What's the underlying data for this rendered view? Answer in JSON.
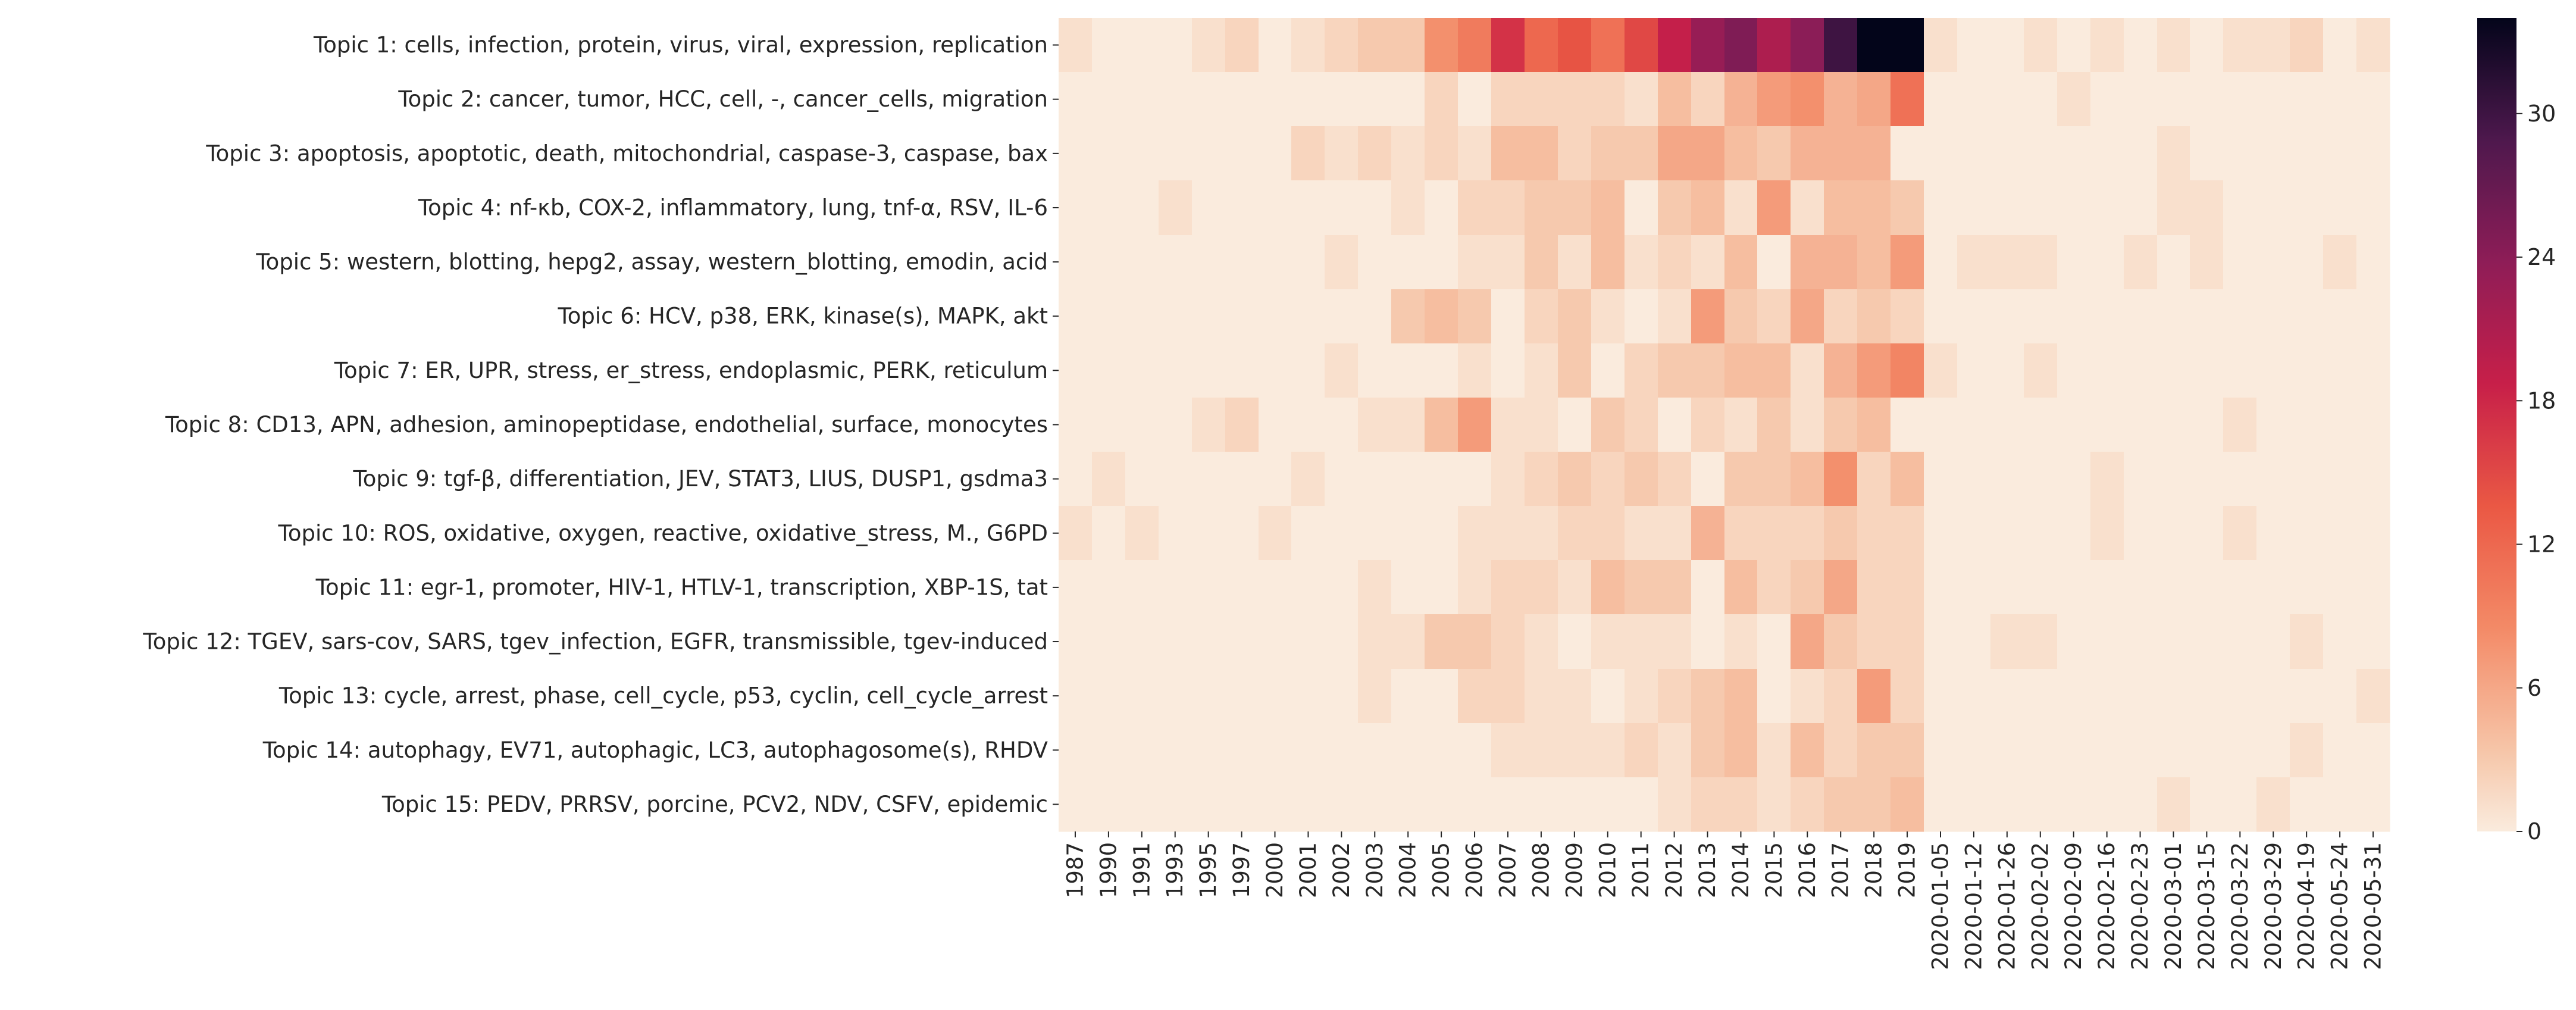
{
  "chart_data": {
    "type": "heatmap",
    "title": "",
    "xlabel": "",
    "ylabel": "",
    "colormap": "rocket_r",
    "color_range": [
      0,
      34
    ],
    "colorbar_ticks": [
      0,
      6,
      12,
      18,
      24,
      30
    ],
    "colorbar_tick_labels": [
      "0",
      "6",
      "12",
      "18",
      "24",
      "30"
    ],
    "x_labels": [
      "1987",
      "1990",
      "1991",
      "1993",
      "1995",
      "1997",
      "2000",
      "2001",
      "2002",
      "2003",
      "2004",
      "2005",
      "2006",
      "2007",
      "2008",
      "2009",
      "2010",
      "2011",
      "2012",
      "2013",
      "2014",
      "2015",
      "2016",
      "2017",
      "2018",
      "2019",
      "2020-01-05",
      "2020-01-12",
      "2020-01-26",
      "2020-02-02",
      "2020-02-09",
      "2020-02-16",
      "2020-02-23",
      "2020-03-01",
      "2020-03-15",
      "2020-03-22",
      "2020-03-29",
      "2020-04-19",
      "2020-05-24",
      "2020-05-31"
    ],
    "y_labels": [
      "Topic 1: cells, infection, protein, virus, viral, expression, replication",
      "Topic 2: cancer, tumor, HCC, cell, -, cancer_cells, migration",
      "Topic 3: apoptosis, apoptotic, death, mitochondrial, caspase-3, caspase, bax",
      "Topic 4: nf-κb, COX-2, inflammatory, lung, tnf-α, RSV, IL-6",
      "Topic 5: western, blotting, hepg2, assay, western_blotting, emodin, acid",
      "Topic 6: HCV, p38, ERK, kinase(s), MAPK, akt",
      "Topic 7: ER, UPR, stress, er_stress, endoplasmic, PERK, reticulum",
      "Topic 8: CD13, APN, adhesion, aminopeptidase, endothelial, surface, monocytes",
      "Topic 9: tgf-β, differentiation, JEV, STAT3, LIUS, DUSP1, gsdma3",
      "Topic 10: ROS, oxidative, oxygen, reactive, oxidative_stress, M., G6PD",
      "Topic 11: egr-1, promoter, HIV-1, HTLV-1, transcription, XBP-1S, tat",
      "Topic 12: TGEV, sars-cov, SARS, tgev_infection, EGFR, transmissible, tgev-induced",
      "Topic 13: cycle, arrest, phase, cell_cycle, p53, cyclin, cell_cycle_arrest",
      "Topic 14: autophagy, EV71, autophagic, LC3, autophagosome(s), RHDV",
      "Topic 15: PEDV, PRRSV, porcine, PCV2, NDV, CSFV, epidemic"
    ],
    "values": [
      [
        1,
        0,
        0,
        0,
        1,
        2,
        0,
        1,
        2,
        3,
        3,
        8,
        10,
        17,
        12,
        14,
        11,
        15,
        19,
        23,
        25,
        21,
        24,
        30,
        34,
        34,
        1,
        0,
        0,
        1,
        0,
        1,
        0,
        1,
        0,
        1,
        1,
        2,
        0,
        1
      ],
      [
        0,
        0,
        0,
        0,
        0,
        0,
        0,
        0,
        0,
        0,
        0,
        2,
        0,
        2,
        2,
        2,
        2,
        1,
        4,
        2,
        5,
        7,
        8,
        5,
        6,
        11,
        0,
        0,
        0,
        0,
        1,
        0,
        0,
        0,
        0,
        0,
        0,
        0,
        0,
        0
      ],
      [
        0,
        0,
        0,
        0,
        0,
        0,
        0,
        2,
        1,
        2,
        1,
        2,
        1,
        4,
        4,
        2,
        3,
        3,
        6,
        6,
        4,
        3,
        5,
        5,
        5,
        0,
        0,
        0,
        0,
        0,
        0,
        0,
        0,
        1,
        0,
        0,
        0,
        0,
        0,
        0
      ],
      [
        0,
        0,
        0,
        1,
        0,
        0,
        0,
        0,
        0,
        0,
        1,
        0,
        2,
        2,
        3,
        3,
        4,
        0,
        3,
        4,
        1,
        7,
        1,
        4,
        4,
        3,
        0,
        0,
        0,
        0,
        0,
        0,
        0,
        1,
        1,
        0,
        0,
        0,
        0,
        0
      ],
      [
        0,
        0,
        0,
        0,
        0,
        0,
        0,
        0,
        1,
        0,
        0,
        0,
        1,
        1,
        3,
        1,
        4,
        1,
        2,
        1,
        4,
        0,
        5,
        5,
        4,
        7,
        0,
        1,
        1,
        1,
        0,
        0,
        1,
        0,
        1,
        0,
        0,
        0,
        1,
        0
      ],
      [
        0,
        0,
        0,
        0,
        0,
        0,
        0,
        0,
        0,
        0,
        3,
        4,
        3,
        0,
        2,
        3,
        1,
        0,
        1,
        7,
        3,
        2,
        6,
        2,
        3,
        2,
        0,
        0,
        0,
        0,
        0,
        0,
        0,
        0,
        0,
        0,
        0,
        0,
        0,
        0
      ],
      [
        0,
        0,
        0,
        0,
        0,
        0,
        0,
        0,
        1,
        0,
        0,
        0,
        1,
        0,
        1,
        3,
        0,
        2,
        3,
        3,
        4,
        4,
        1,
        5,
        7,
        9,
        1,
        0,
        0,
        1,
        0,
        0,
        0,
        0,
        0,
        0,
        0,
        0,
        0,
        0
      ],
      [
        0,
        0,
        0,
        0,
        1,
        2,
        0,
        0,
        0,
        1,
        1,
        4,
        7,
        1,
        1,
        0,
        3,
        2,
        0,
        2,
        1,
        3,
        1,
        3,
        4,
        0,
        0,
        0,
        0,
        0,
        0,
        0,
        0,
        0,
        0,
        1,
        0,
        0,
        0,
        0
      ],
      [
        0,
        1,
        0,
        0,
        0,
        0,
        0,
        1,
        0,
        0,
        0,
        0,
        0,
        1,
        2,
        3,
        2,
        3,
        2,
        0,
        3,
        3,
        4,
        8,
        2,
        4,
        0,
        0,
        0,
        0,
        0,
        1,
        0,
        0,
        0,
        0,
        0,
        0,
        0,
        0
      ],
      [
        1,
        0,
        1,
        0,
        0,
        0,
        1,
        0,
        0,
        0,
        0,
        0,
        1,
        1,
        1,
        2,
        2,
        1,
        1,
        5,
        2,
        2,
        2,
        3,
        2,
        2,
        0,
        0,
        0,
        0,
        0,
        1,
        0,
        0,
        0,
        1,
        0,
        0,
        0,
        0
      ],
      [
        0,
        0,
        0,
        0,
        0,
        0,
        0,
        0,
        0,
        1,
        0,
        0,
        1,
        2,
        2,
        1,
        4,
        3,
        3,
        0,
        4,
        2,
        3,
        6,
        2,
        2,
        0,
        0,
        0,
        0,
        0,
        0,
        0,
        0,
        0,
        0,
        0,
        0,
        0,
        0
      ],
      [
        0,
        0,
        0,
        0,
        0,
        0,
        0,
        0,
        0,
        1,
        1,
        3,
        3,
        2,
        1,
        0,
        1,
        1,
        1,
        0,
        1,
        0,
        6,
        3,
        2,
        2,
        0,
        0,
        1,
        1,
        0,
        0,
        0,
        0,
        0,
        0,
        0,
        1,
        0,
        0
      ],
      [
        0,
        0,
        0,
        0,
        0,
        0,
        0,
        0,
        0,
        1,
        0,
        0,
        2,
        2,
        1,
        1,
        0,
        1,
        2,
        3,
        4,
        0,
        1,
        2,
        7,
        2,
        0,
        0,
        0,
        0,
        0,
        0,
        0,
        0,
        0,
        0,
        0,
        0,
        0,
        1
      ],
      [
        0,
        0,
        0,
        0,
        0,
        0,
        0,
        0,
        0,
        0,
        0,
        0,
        0,
        1,
        1,
        1,
        1,
        2,
        1,
        3,
        4,
        1,
        4,
        2,
        3,
        3,
        0,
        0,
        0,
        0,
        0,
        0,
        0,
        0,
        0,
        0,
        0,
        1,
        0,
        0
      ],
      [
        0,
        0,
        0,
        0,
        0,
        0,
        0,
        0,
        0,
        0,
        0,
        0,
        0,
        0,
        0,
        0,
        0,
        0,
        1,
        2,
        2,
        1,
        2,
        3,
        3,
        4,
        0,
        0,
        0,
        0,
        0,
        0,
        0,
        1,
        0,
        0,
        1,
        0,
        0,
        0
      ]
    ]
  }
}
